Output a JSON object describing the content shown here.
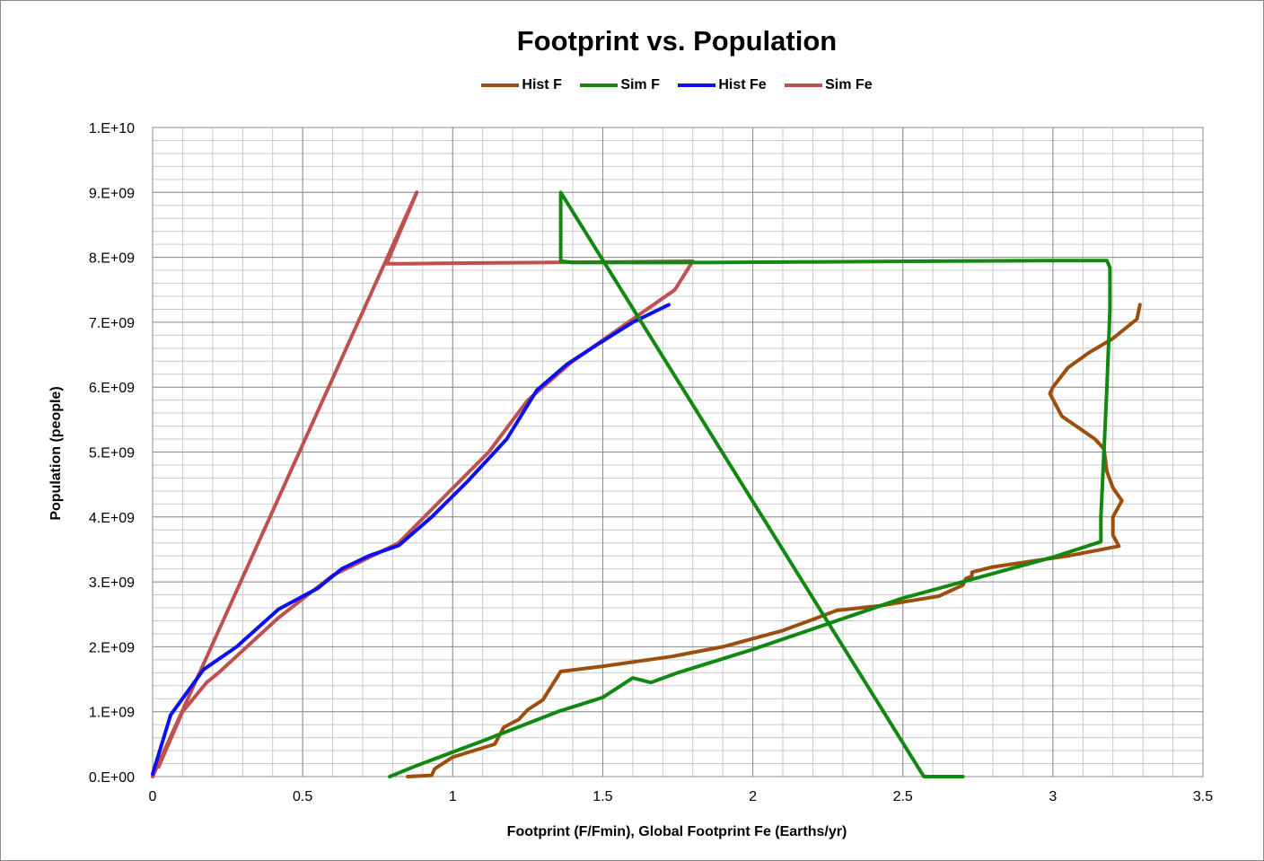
{
  "chart_data": {
    "type": "line",
    "title": "Footprint vs. Population",
    "xlabel": "Footprint (F/Fmin), Global Footprint Fe (Earths/yr)",
    "ylabel": "Population (people)",
    "xlim": [
      0,
      3.5
    ],
    "ylim": [
      0,
      10000000000
    ],
    "x_ticks": [
      0,
      0.5,
      1,
      1.5,
      2,
      2.5,
      3,
      3.5
    ],
    "x_tick_labels": [
      "0",
      "0.5",
      "1",
      "1.5",
      "2",
      "2.5",
      "3",
      "3.5"
    ],
    "y_ticks": [
      0,
      1000000000,
      2000000000,
      3000000000,
      4000000000,
      5000000000,
      6000000000,
      7000000000,
      8000000000,
      9000000000,
      10000000000
    ],
    "y_tick_labels": [
      "0.E+00",
      "1.E+09",
      "2.E+09",
      "3.E+09",
      "4.E+09",
      "5.E+09",
      "6.E+09",
      "7.E+09",
      "8.E+09",
      "9.E+09",
      "1.E+10"
    ],
    "grid": true,
    "legend_position": "top",
    "series": [
      {
        "name": "Hist F",
        "color": "#9c4e0d",
        "points": [
          [
            0.85,
            0
          ],
          [
            0.93,
            20000000.0
          ],
          [
            0.94,
            120000000.0
          ],
          [
            1.0,
            300000000.0
          ],
          [
            1.14,
            500000000.0
          ],
          [
            1.17,
            760000000.0
          ],
          [
            1.22,
            880000000.0
          ],
          [
            1.25,
            1030000000.0
          ],
          [
            1.3,
            1180000000.0
          ],
          [
            1.36,
            1620000000.0
          ],
          [
            1.5,
            1700000000.0
          ],
          [
            1.73,
            1850000000.0
          ],
          [
            1.9,
            2000000000.0
          ],
          [
            2.1,
            2250000000.0
          ],
          [
            2.2,
            2420000000.0
          ],
          [
            2.28,
            2560000000.0
          ],
          [
            2.42,
            2630000000.0
          ],
          [
            2.62,
            2780000000.0
          ],
          [
            2.7,
            2950000000.0
          ],
          [
            2.71,
            3050000000.0
          ],
          [
            2.73,
            3090000000.0
          ],
          [
            2.73,
            3150000000.0
          ],
          [
            2.8,
            3230000000.0
          ],
          [
            3.05,
            3400000000.0
          ],
          [
            3.22,
            3550000000.0
          ],
          [
            3.2,
            3720000000.0
          ],
          [
            3.2,
            4000000000.0
          ],
          [
            3.23,
            4250000000.0
          ],
          [
            3.2,
            4450000000.0
          ],
          [
            3.18,
            4700000000.0
          ],
          [
            3.17,
            5050000000.0
          ],
          [
            3.14,
            5200000000.0
          ],
          [
            3.03,
            5550000000.0
          ],
          [
            2.99,
            5900000000.0
          ],
          [
            3.0,
            6000000000.0
          ],
          [
            3.05,
            6300000000.0
          ],
          [
            3.12,
            6530000000.0
          ],
          [
            3.2,
            6750000000.0
          ],
          [
            3.28,
            7050000000.0
          ],
          [
            3.29,
            7270000000.0
          ]
        ]
      },
      {
        "name": "Sim F",
        "color": "#118811",
        "points": [
          [
            2.7,
            0
          ],
          [
            2.57,
            0
          ],
          [
            1.36,
            9000000000.0
          ],
          [
            1.36,
            7940000000.0
          ],
          [
            1.4,
            7920000000.0
          ],
          [
            1.65,
            7920000000.0
          ],
          [
            1.85,
            7920000000.0
          ],
          [
            2.2,
            7930000000.0
          ],
          [
            2.6,
            7940000000.0
          ],
          [
            3.0,
            7950000000.0
          ],
          [
            3.18,
            7950000000.0
          ],
          [
            3.19,
            7840000000.0
          ],
          [
            3.19,
            7200000000.0
          ],
          [
            3.18,
            6000000000.0
          ],
          [
            3.17,
            5000000000.0
          ],
          [
            3.16,
            4000000000.0
          ],
          [
            3.16,
            3620000000.0
          ],
          [
            3.0,
            3380000000.0
          ],
          [
            2.5,
            2750000000.0
          ],
          [
            2.0,
            1960000000.0
          ],
          [
            1.75,
            1600000000.0
          ],
          [
            1.66,
            1450000000.0
          ],
          [
            1.6,
            1520000000.0
          ],
          [
            1.5,
            1220000000.0
          ],
          [
            1.35,
            1000000000.0
          ],
          [
            1.1,
            550000000.0
          ],
          [
            0.88,
            170000000.0
          ],
          [
            0.79,
            0
          ]
        ]
      },
      {
        "name": "Hist Fe",
        "color": "#0a11ee",
        "points": [
          [
            0.0,
            40000000.0
          ],
          [
            0.06,
            950000000.0
          ],
          [
            0.17,
            1650000000.0
          ],
          [
            0.28,
            2000000000.0
          ],
          [
            0.42,
            2580000000.0
          ],
          [
            0.55,
            2900000000.0
          ],
          [
            0.63,
            3200000000.0
          ],
          [
            0.72,
            3400000000.0
          ],
          [
            0.82,
            3560000000.0
          ],
          [
            0.93,
            4000000000.0
          ],
          [
            1.05,
            4550000000.0
          ],
          [
            1.18,
            5200000000.0
          ],
          [
            1.28,
            5950000000.0
          ],
          [
            1.38,
            6350000000.0
          ],
          [
            1.48,
            6650000000.0
          ],
          [
            1.6,
            7000000000.0
          ],
          [
            1.72,
            7270000000.0
          ]
        ]
      },
      {
        "name": "Sim Fe",
        "color": "#c0504d",
        "points": [
          [
            0.88,
            9000000000.0
          ],
          [
            0.78,
            7900000000.0
          ],
          [
            0.85,
            7900000000.0
          ],
          [
            1.0,
            7910000000.0
          ],
          [
            1.3,
            7920000000.0
          ],
          [
            1.55,
            7930000000.0
          ],
          [
            1.8,
            7940000000.0
          ],
          [
            1.74,
            7500000000.0
          ],
          [
            1.57,
            6950000000.0
          ],
          [
            1.4,
            6400000000.0
          ],
          [
            1.25,
            5800000000.0
          ],
          [
            1.12,
            5000000000.0
          ],
          [
            0.98,
            4350000000.0
          ],
          [
            0.82,
            3600000000.0
          ],
          [
            0.6,
            3100000000.0
          ],
          [
            0.42,
            2450000000.0
          ],
          [
            0.22,
            1600000000.0
          ],
          [
            0.18,
            1450000000.0
          ],
          [
            0.1,
            1000000000.0
          ],
          [
            0.02,
            150000000.0
          ]
        ]
      },
      {
        "name": "",
        "color": "#c0504d",
        "points": [
          [
            0.0,
            0.0
          ],
          [
            0.88,
            9000000000.0
          ]
        ]
      }
    ]
  }
}
